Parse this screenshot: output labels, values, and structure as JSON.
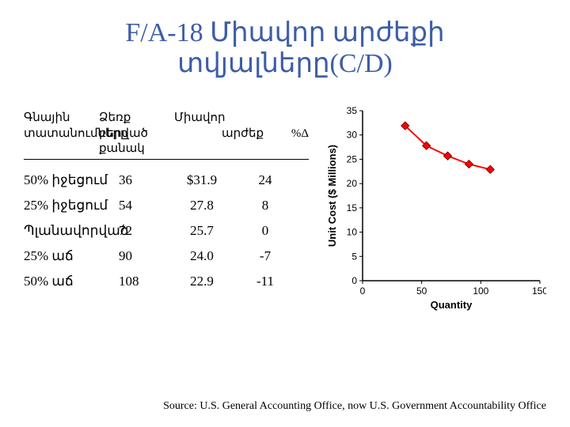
{
  "title_line1": "F/A-18 Միավոր արժեքի",
  "title_line2": "տվյալները(C/D)",
  "table": {
    "header": {
      "c1a": "Գնային",
      "c1b": "տատանումները",
      "c2a": "Ձեռք բերված",
      "c2b": "քանակ",
      "c3a": "Միավոր",
      "c3b": "արժեք",
      "c4": "%Δ"
    },
    "rows": [
      {
        "c1": "50% իջեցում",
        "c2": "36",
        "c3": "$31.9",
        "c4": "24"
      },
      {
        "c1": "25% իջեցում",
        "c2": "54",
        "c3": "27.8",
        "c4": "8"
      },
      {
        "c1": "Պլանավորված",
        "c2": "72",
        "c3": "25.7",
        "c4": "0"
      },
      {
        "c1": "25% աճ",
        "c2": "90",
        "c3": "24.0",
        "c4": "-7"
      },
      {
        "c1": "50% աճ",
        "c2": "108",
        "c3": "22.9",
        "c4": "-11"
      }
    ]
  },
  "chart": {
    "type": "line",
    "x_title": "Quantity",
    "y_title": "Unit Cost ($ Millions)",
    "xlim": [
      0,
      150
    ],
    "xtick_step": 50,
    "ylim": [
      0,
      35
    ],
    "ytick_step": 5,
    "background_color": "#ffffff",
    "axis_color": "#000000",
    "tick_font_size": 12,
    "title_font_size": 13,
    "line_color": "#ff0000",
    "marker_fill": "#ff0000",
    "marker_stroke": "#800000",
    "marker_shape": "diamond",
    "marker_size": 5,
    "line_width": 2,
    "points": [
      {
        "x": 36,
        "y": 31.9
      },
      {
        "x": 54,
        "y": 27.8
      },
      {
        "x": 72,
        "y": 25.7
      },
      {
        "x": 90,
        "y": 24.0
      },
      {
        "x": 108,
        "y": 22.9
      }
    ]
  },
  "source": "Source:  U.S. General Accounting Office, now U.S. Government Accountability Office"
}
